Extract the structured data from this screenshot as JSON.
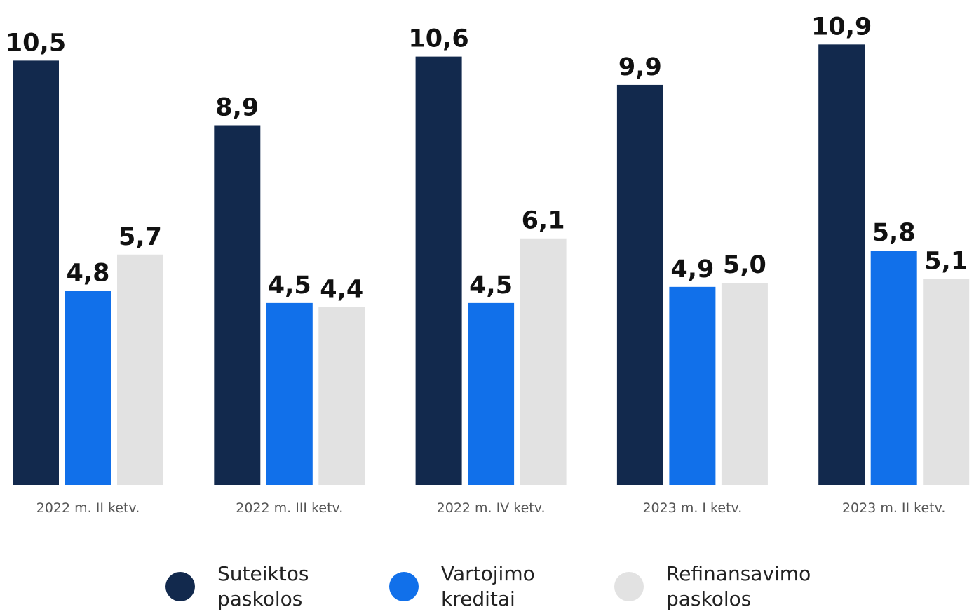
{
  "chart_data": {
    "type": "bar",
    "categories": [
      "2022 m. II ketv.",
      "2022 m. III ketv.",
      "2022 m. IV ketv.",
      "2023 m. I ketv.",
      "2023 m. II ketv."
    ],
    "series": [
      {
        "name": "Suteiktos paskolos",
        "color": "#12294d",
        "values": [
          10.5,
          8.9,
          10.6,
          9.9,
          10.9
        ],
        "value_labels": [
          "10,5",
          "8,9",
          "10,6",
          "9,9",
          "10,9"
        ]
      },
      {
        "name": "Vartojimo kreditai",
        "color": "#1170ea",
        "values": [
          4.8,
          4.5,
          4.5,
          4.9,
          5.8
        ],
        "value_labels": [
          "4,8",
          "4,5",
          "4,5",
          "4,9",
          "5,8"
        ]
      },
      {
        "name": "Refinansavimo paskolos",
        "color": "#e2e2e2",
        "values": [
          5.7,
          4.4,
          6.1,
          5.0,
          5.1
        ],
        "value_labels": [
          "5,7",
          "4,4",
          "6,1",
          "5,0",
          "5,1"
        ]
      }
    ],
    "ylim": [
      0,
      12
    ]
  }
}
